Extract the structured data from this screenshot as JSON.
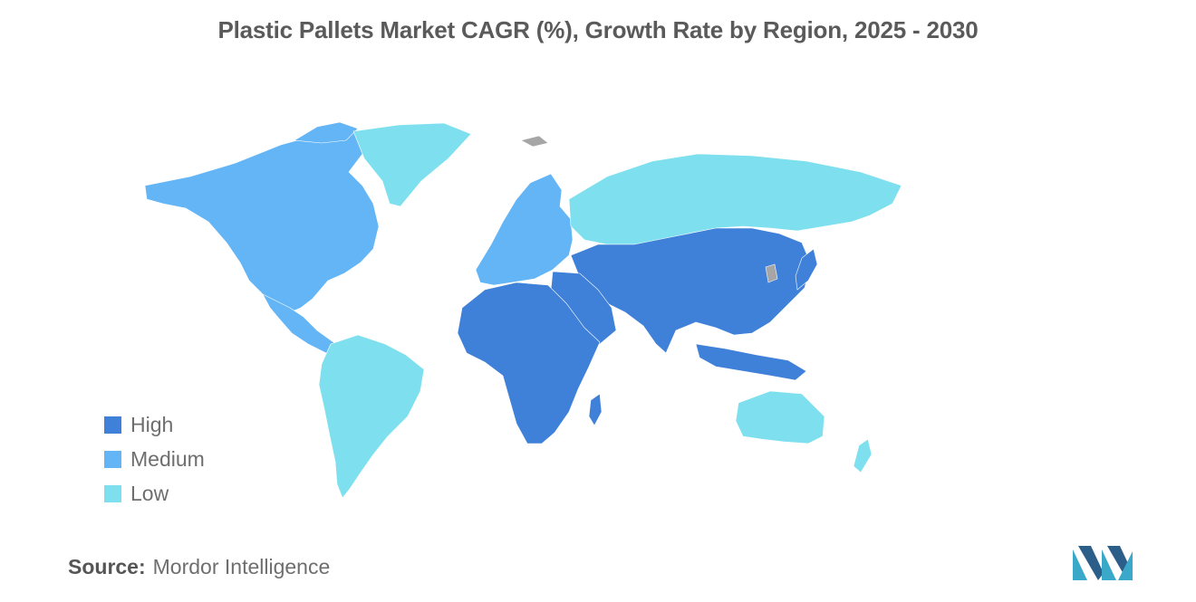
{
  "title": "Plastic Pallets Market CAGR (%), Growth Rate by Region, 2025 - 2030",
  "colors": {
    "high": "#3f80d8",
    "medium": "#64b5f6",
    "low": "#7ee0ee",
    "no_data": "#a6a6a6"
  },
  "legend": [
    {
      "label": "High",
      "color": "#3f80d8"
    },
    {
      "label": "Medium",
      "color": "#64b5f6"
    },
    {
      "label": "Low",
      "color": "#7ee0ee"
    }
  ],
  "map": {
    "regions": [
      {
        "name": "north-america",
        "level": "Medium"
      },
      {
        "name": "greenland",
        "level": "Low"
      },
      {
        "name": "central-america",
        "level": "Medium"
      },
      {
        "name": "south-america",
        "level": "Low"
      },
      {
        "name": "europe",
        "level": "Medium"
      },
      {
        "name": "russia",
        "level": "Low"
      },
      {
        "name": "africa",
        "level": "High"
      },
      {
        "name": "middle-east",
        "level": "High"
      },
      {
        "name": "asia",
        "level": "High"
      },
      {
        "name": "japan",
        "level": "High"
      },
      {
        "name": "southeast-asia",
        "level": "High"
      },
      {
        "name": "australia",
        "level": "Low"
      },
      {
        "name": "new-zealand",
        "level": "Low"
      }
    ]
  },
  "source": {
    "label": "Source:",
    "value": "Mordor Intelligence"
  },
  "logo": {
    "icon": "mordor-intelligence-logo"
  }
}
